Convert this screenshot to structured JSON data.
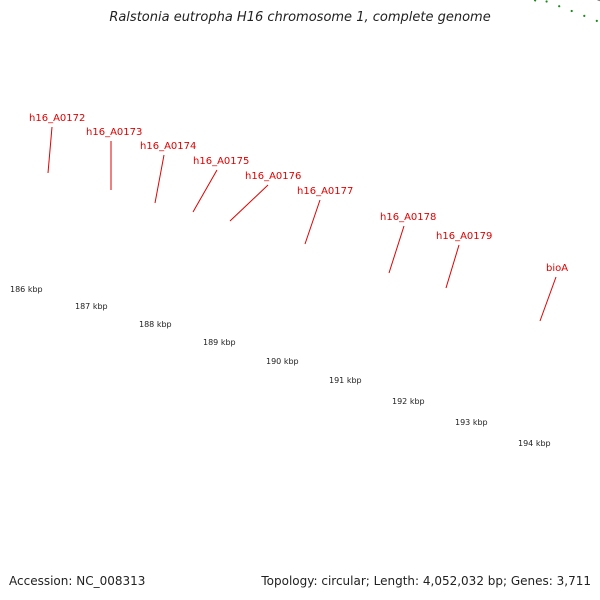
{
  "title": "Ralstonia eutropha H16 chromosome 1, complete genome",
  "footer": {
    "accession": "Accession: NC_008313",
    "summary": "Topology: circular; Length: 4,052,032 bp; Genes: 3,711"
  },
  "scale_labels": [
    "186 kbp",
    "187 kbp",
    "188 kbp",
    "189 kbp",
    "190 kbp",
    "191 kbp",
    "192 kbp",
    "193 kbp",
    "194 kbp"
  ],
  "gene_labels": [
    "h16_A0172",
    "h16_A0173",
    "h16_A0174",
    "h16_A0175",
    "h16_A0176",
    "h16_A0177",
    "h16_A0178",
    "h16_A0179",
    "bioA"
  ],
  "colors": {
    "label_red": "#e00000",
    "cds_red": "#ff0000",
    "tick_green": "#1a8a1a",
    "backbone_gray": "#8a8a8a",
    "feature_navy": "#000070",
    "feature_slate": "#7b6fd6",
    "feature_lightgray": "#cccccc",
    "feature_darkgray": "#6a6a6a",
    "feature_khaki": "#bdb473",
    "feature_blue": "#0000ff"
  }
}
